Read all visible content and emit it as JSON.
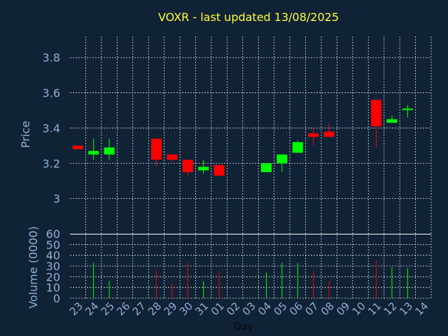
{
  "chart_data": [
    {
      "type": "candlestick",
      "title": "VOXR - last updated 13/08/2025",
      "ylabel": "Price",
      "ylim": [
        2.8,
        3.92
      ],
      "yticks": [
        3,
        3.2,
        3.4,
        3.6,
        3.8
      ],
      "ytick_labels": [
        "3",
        "3.2",
        "3.4",
        "3.6",
        "3.8"
      ],
      "grid": true,
      "up_color": "#00ff00",
      "down_color": "#ff0000",
      "categories": [
        "23",
        "24",
        "25",
        "26",
        "27",
        "28",
        "29",
        "30",
        "31",
        "01",
        "02",
        "03",
        "04",
        "05",
        "06",
        "07",
        "08",
        "09",
        "10",
        "11",
        "12",
        "13",
        "14"
      ],
      "candles": [
        {
          "day": "23",
          "open": 3.3,
          "high": 3.3,
          "low": 3.28,
          "close": 3.28
        },
        {
          "day": "24",
          "open": 3.25,
          "high": 3.34,
          "low": 3.22,
          "close": 3.27
        },
        {
          "day": "25",
          "open": 3.25,
          "high": 3.34,
          "low": 3.22,
          "close": 3.29
        },
        {
          "day": "28",
          "open": 3.34,
          "high": 3.34,
          "low": 3.18,
          "close": 3.22
        },
        {
          "day": "29",
          "open": 3.25,
          "high": 3.25,
          "low": 3.21,
          "close": 3.22
        },
        {
          "day": "30",
          "open": 3.22,
          "high": 3.22,
          "low": 3.13,
          "close": 3.15
        },
        {
          "day": "31",
          "open": 3.16,
          "high": 3.22,
          "low": 3.14,
          "close": 3.18
        },
        {
          "day": "01",
          "open": 3.19,
          "high": 3.19,
          "low": 3.13,
          "close": 3.13
        },
        {
          "day": "04",
          "open": 3.15,
          "high": 3.2,
          "low": 3.15,
          "close": 3.2
        },
        {
          "day": "05",
          "open": 3.2,
          "high": 3.25,
          "low": 3.15,
          "close": 3.25
        },
        {
          "day": "06",
          "open": 3.26,
          "high": 3.33,
          "low": 3.26,
          "close": 3.32
        },
        {
          "day": "07",
          "open": 3.37,
          "high": 3.4,
          "low": 3.3,
          "close": 3.35
        },
        {
          "day": "08",
          "open": 3.38,
          "high": 3.43,
          "low": 3.35,
          "close": 3.35
        },
        {
          "day": "11",
          "open": 3.56,
          "high": 3.56,
          "low": 3.29,
          "close": 3.41
        },
        {
          "day": "12",
          "open": 3.43,
          "high": 3.47,
          "low": 3.43,
          "close": 3.45
        },
        {
          "day": "13",
          "open": 3.51,
          "high": 3.53,
          "low": 3.46,
          "close": 3.51
        }
      ]
    },
    {
      "type": "bar",
      "ylabel": "Volume (0000)",
      "xlabel": "Day",
      "ylim": [
        0,
        60
      ],
      "yticks": [
        0,
        10,
        20,
        30,
        40,
        50,
        60
      ],
      "ytick_labels": [
        "0",
        "10",
        "20",
        "30",
        "40",
        "50",
        "60"
      ],
      "grid": true,
      "categories": [
        "23",
        "24",
        "25",
        "26",
        "27",
        "28",
        "29",
        "30",
        "31",
        "01",
        "02",
        "03",
        "04",
        "05",
        "06",
        "07",
        "08",
        "09",
        "10",
        "11",
        "12",
        "13",
        "14"
      ],
      "bars": [
        {
          "day": "24",
          "value": 33,
          "direction": "up"
        },
        {
          "day": "25",
          "value": 16,
          "direction": "up"
        },
        {
          "day": "28",
          "value": 26,
          "direction": "down"
        },
        {
          "day": "29",
          "value": 14,
          "direction": "down"
        },
        {
          "day": "30",
          "value": 33,
          "direction": "down"
        },
        {
          "day": "31",
          "value": 16,
          "direction": "up"
        },
        {
          "day": "01",
          "value": 25,
          "direction": "down"
        },
        {
          "day": "04",
          "value": 24,
          "direction": "up"
        },
        {
          "day": "05",
          "value": 33,
          "direction": "up"
        },
        {
          "day": "06",
          "value": 33,
          "direction": "up"
        },
        {
          "day": "07",
          "value": 25,
          "direction": "down"
        },
        {
          "day": "08",
          "value": 16,
          "direction": "down"
        },
        {
          "day": "11",
          "value": 35,
          "direction": "down"
        },
        {
          "day": "12",
          "value": 29,
          "direction": "up"
        },
        {
          "day": "13",
          "value": 28,
          "direction": "up"
        }
      ]
    }
  ]
}
